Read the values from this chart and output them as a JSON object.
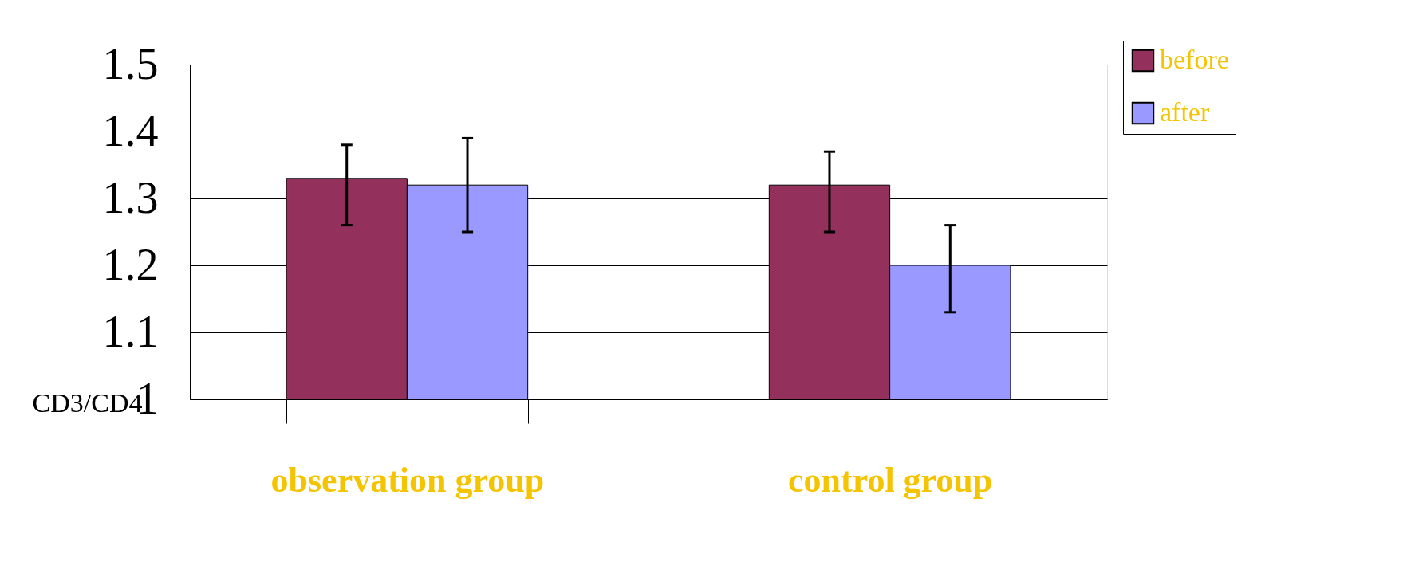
{
  "chart_data": {
    "type": "bar",
    "ylabel": "CD3/CD4",
    "categories": [
      "observation group",
      "control group"
    ],
    "series": [
      {
        "name": "before",
        "color": "#93305c",
        "values": [
          1.33,
          1.32
        ],
        "errors": [
          [
            1.26,
            1.38
          ],
          [
            1.25,
            1.37
          ]
        ]
      },
      {
        "name": "after",
        "color": "#9999ff",
        "values": [
          1.32,
          1.2
        ],
        "errors": [
          [
            1.25,
            1.39
          ],
          [
            1.13,
            1.26
          ]
        ]
      }
    ],
    "ylim": [
      1,
      1.5
    ],
    "yticks": [
      1,
      1.1,
      1.2,
      1.3,
      1.4,
      1.5
    ],
    "grid": "y",
    "legend": "top right"
  }
}
